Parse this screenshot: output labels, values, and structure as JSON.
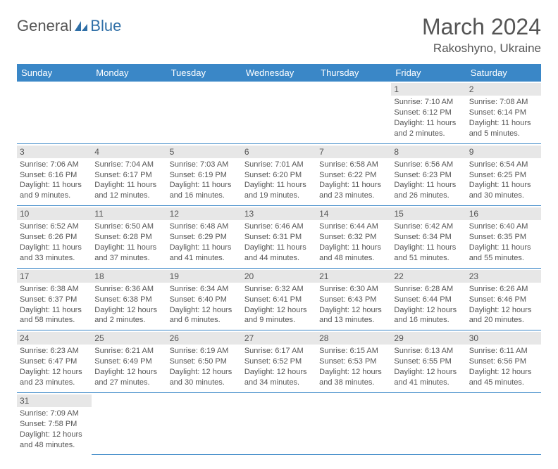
{
  "logo": {
    "general": "General",
    "blue": "Blue"
  },
  "title": "March 2024",
  "location": "Rakoshyno, Ukraine",
  "colors": {
    "header_bg": "#3a87c7",
    "header_text": "#ffffff",
    "date_bg": "#e7e7e7",
    "text": "#555555",
    "rule": "#3a87c7",
    "logo_blue": "#2f6fa7"
  },
  "dayHeaders": [
    "Sunday",
    "Monday",
    "Tuesday",
    "Wednesday",
    "Thursday",
    "Friday",
    "Saturday"
  ],
  "weeks": [
    [
      null,
      null,
      null,
      null,
      null,
      {
        "n": "1",
        "sr": "Sunrise: 7:10 AM",
        "ss": "Sunset: 6:12 PM",
        "d1": "Daylight: 11 hours",
        "d2": "and 2 minutes."
      },
      {
        "n": "2",
        "sr": "Sunrise: 7:08 AM",
        "ss": "Sunset: 6:14 PM",
        "d1": "Daylight: 11 hours",
        "d2": "and 5 minutes."
      }
    ],
    [
      {
        "n": "3",
        "sr": "Sunrise: 7:06 AM",
        "ss": "Sunset: 6:16 PM",
        "d1": "Daylight: 11 hours",
        "d2": "and 9 minutes."
      },
      {
        "n": "4",
        "sr": "Sunrise: 7:04 AM",
        "ss": "Sunset: 6:17 PM",
        "d1": "Daylight: 11 hours",
        "d2": "and 12 minutes."
      },
      {
        "n": "5",
        "sr": "Sunrise: 7:03 AM",
        "ss": "Sunset: 6:19 PM",
        "d1": "Daylight: 11 hours",
        "d2": "and 16 minutes."
      },
      {
        "n": "6",
        "sr": "Sunrise: 7:01 AM",
        "ss": "Sunset: 6:20 PM",
        "d1": "Daylight: 11 hours",
        "d2": "and 19 minutes."
      },
      {
        "n": "7",
        "sr": "Sunrise: 6:58 AM",
        "ss": "Sunset: 6:22 PM",
        "d1": "Daylight: 11 hours",
        "d2": "and 23 minutes."
      },
      {
        "n": "8",
        "sr": "Sunrise: 6:56 AM",
        "ss": "Sunset: 6:23 PM",
        "d1": "Daylight: 11 hours",
        "d2": "and 26 minutes."
      },
      {
        "n": "9",
        "sr": "Sunrise: 6:54 AM",
        "ss": "Sunset: 6:25 PM",
        "d1": "Daylight: 11 hours",
        "d2": "and 30 minutes."
      }
    ],
    [
      {
        "n": "10",
        "sr": "Sunrise: 6:52 AM",
        "ss": "Sunset: 6:26 PM",
        "d1": "Daylight: 11 hours",
        "d2": "and 33 minutes."
      },
      {
        "n": "11",
        "sr": "Sunrise: 6:50 AM",
        "ss": "Sunset: 6:28 PM",
        "d1": "Daylight: 11 hours",
        "d2": "and 37 minutes."
      },
      {
        "n": "12",
        "sr": "Sunrise: 6:48 AM",
        "ss": "Sunset: 6:29 PM",
        "d1": "Daylight: 11 hours",
        "d2": "and 41 minutes."
      },
      {
        "n": "13",
        "sr": "Sunrise: 6:46 AM",
        "ss": "Sunset: 6:31 PM",
        "d1": "Daylight: 11 hours",
        "d2": "and 44 minutes."
      },
      {
        "n": "14",
        "sr": "Sunrise: 6:44 AM",
        "ss": "Sunset: 6:32 PM",
        "d1": "Daylight: 11 hours",
        "d2": "and 48 minutes."
      },
      {
        "n": "15",
        "sr": "Sunrise: 6:42 AM",
        "ss": "Sunset: 6:34 PM",
        "d1": "Daylight: 11 hours",
        "d2": "and 51 minutes."
      },
      {
        "n": "16",
        "sr": "Sunrise: 6:40 AM",
        "ss": "Sunset: 6:35 PM",
        "d1": "Daylight: 11 hours",
        "d2": "and 55 minutes."
      }
    ],
    [
      {
        "n": "17",
        "sr": "Sunrise: 6:38 AM",
        "ss": "Sunset: 6:37 PM",
        "d1": "Daylight: 11 hours",
        "d2": "and 58 minutes."
      },
      {
        "n": "18",
        "sr": "Sunrise: 6:36 AM",
        "ss": "Sunset: 6:38 PM",
        "d1": "Daylight: 12 hours",
        "d2": "and 2 minutes."
      },
      {
        "n": "19",
        "sr": "Sunrise: 6:34 AM",
        "ss": "Sunset: 6:40 PM",
        "d1": "Daylight: 12 hours",
        "d2": "and 6 minutes."
      },
      {
        "n": "20",
        "sr": "Sunrise: 6:32 AM",
        "ss": "Sunset: 6:41 PM",
        "d1": "Daylight: 12 hours",
        "d2": "and 9 minutes."
      },
      {
        "n": "21",
        "sr": "Sunrise: 6:30 AM",
        "ss": "Sunset: 6:43 PM",
        "d1": "Daylight: 12 hours",
        "d2": "and 13 minutes."
      },
      {
        "n": "22",
        "sr": "Sunrise: 6:28 AM",
        "ss": "Sunset: 6:44 PM",
        "d1": "Daylight: 12 hours",
        "d2": "and 16 minutes."
      },
      {
        "n": "23",
        "sr": "Sunrise: 6:26 AM",
        "ss": "Sunset: 6:46 PM",
        "d1": "Daylight: 12 hours",
        "d2": "and 20 minutes."
      }
    ],
    [
      {
        "n": "24",
        "sr": "Sunrise: 6:23 AM",
        "ss": "Sunset: 6:47 PM",
        "d1": "Daylight: 12 hours",
        "d2": "and 23 minutes."
      },
      {
        "n": "25",
        "sr": "Sunrise: 6:21 AM",
        "ss": "Sunset: 6:49 PM",
        "d1": "Daylight: 12 hours",
        "d2": "and 27 minutes."
      },
      {
        "n": "26",
        "sr": "Sunrise: 6:19 AM",
        "ss": "Sunset: 6:50 PM",
        "d1": "Daylight: 12 hours",
        "d2": "and 30 minutes."
      },
      {
        "n": "27",
        "sr": "Sunrise: 6:17 AM",
        "ss": "Sunset: 6:52 PM",
        "d1": "Daylight: 12 hours",
        "d2": "and 34 minutes."
      },
      {
        "n": "28",
        "sr": "Sunrise: 6:15 AM",
        "ss": "Sunset: 6:53 PM",
        "d1": "Daylight: 12 hours",
        "d2": "and 38 minutes."
      },
      {
        "n": "29",
        "sr": "Sunrise: 6:13 AM",
        "ss": "Sunset: 6:55 PM",
        "d1": "Daylight: 12 hours",
        "d2": "and 41 minutes."
      },
      {
        "n": "30",
        "sr": "Sunrise: 6:11 AM",
        "ss": "Sunset: 6:56 PM",
        "d1": "Daylight: 12 hours",
        "d2": "and 45 minutes."
      }
    ],
    [
      {
        "n": "31",
        "sr": "Sunrise: 7:09 AM",
        "ss": "Sunset: 7:58 PM",
        "d1": "Daylight: 12 hours",
        "d2": "and 48 minutes."
      },
      null,
      null,
      null,
      null,
      null,
      null
    ]
  ]
}
